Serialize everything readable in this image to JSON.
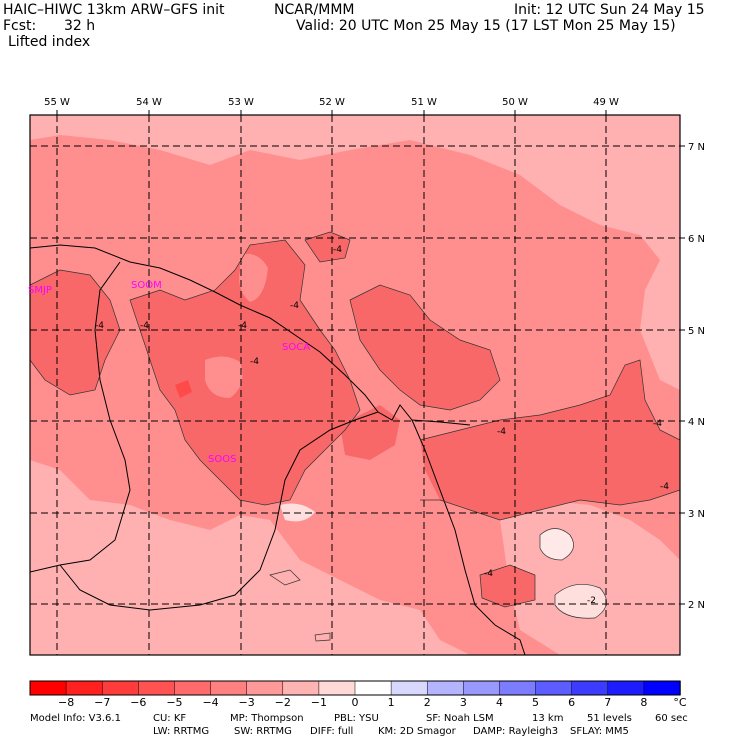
{
  "header": {
    "model_title": "HAIC–HIWC 13km ARW–GFS init",
    "org": "NCAR/MMM",
    "init": "Init: 12 UTC Sun 24 May 15",
    "fcst_label": "Fcst:",
    "fcst_value": "32 h",
    "valid": "Valid: 20 UTC Mon 25 May 15 (17 LST Mon 25 May 15)",
    "field": "Lifted index"
  },
  "map": {
    "lon_labels": [
      "55 W",
      "54 W",
      "53 W",
      "52 W",
      "51 W",
      "50 W",
      "49 W"
    ],
    "lat_labels": [
      "7 N",
      "6 N",
      "5 N",
      "4 N",
      "3 N",
      "2 N"
    ],
    "stations": [
      "SMJP",
      "SOCA",
      "SOOM",
      "SOOS"
    ],
    "contour_labels": [
      "-4",
      "-4",
      "-4",
      "-4",
      "-4",
      "-4",
      "-4",
      "-4",
      "-4",
      "-4",
      "-2"
    ],
    "colors": {
      "very_light": "#ffdede",
      "light": "#ffb0b0",
      "medium": "#ff8f8f",
      "dark": "#f86868",
      "station": "#ff00ff"
    }
  },
  "colorbar": {
    "ticks": [
      "−8",
      "−7",
      "−6",
      "−5",
      "−4",
      "−3",
      "−2",
      "−1",
      "0",
      "1",
      "2",
      "3",
      "4",
      "5",
      "6",
      "7",
      "8"
    ],
    "unit": "°C",
    "colors": [
      "#ff0000",
      "#ff2020",
      "#ff3c3c",
      "#ff5252",
      "#ff6a6a",
      "#ff8080",
      "#ff9898",
      "#ffb4b4",
      "#ffd8d8",
      "#ffffff",
      "#d8d8ff",
      "#b4b4ff",
      "#9898ff",
      "#7c7cff",
      "#5c5cff",
      "#3c3cff",
      "#1c1cff",
      "#0000ff"
    ]
  },
  "footer": {
    "line1": [
      "Model Info: V3.6.1",
      "CU: KF",
      "MP: Thompson",
      "PBL: YSU",
      "SF: Noah LSM",
      "13 km",
      "51 levels",
      "60 sec"
    ],
    "line2": [
      "LW: RRTMG",
      "SW: RRTMG",
      "DIFF: full",
      "KM: 2D Smagor",
      "DAMP: Rayleigh3",
      "SFLAY: MM5"
    ]
  }
}
